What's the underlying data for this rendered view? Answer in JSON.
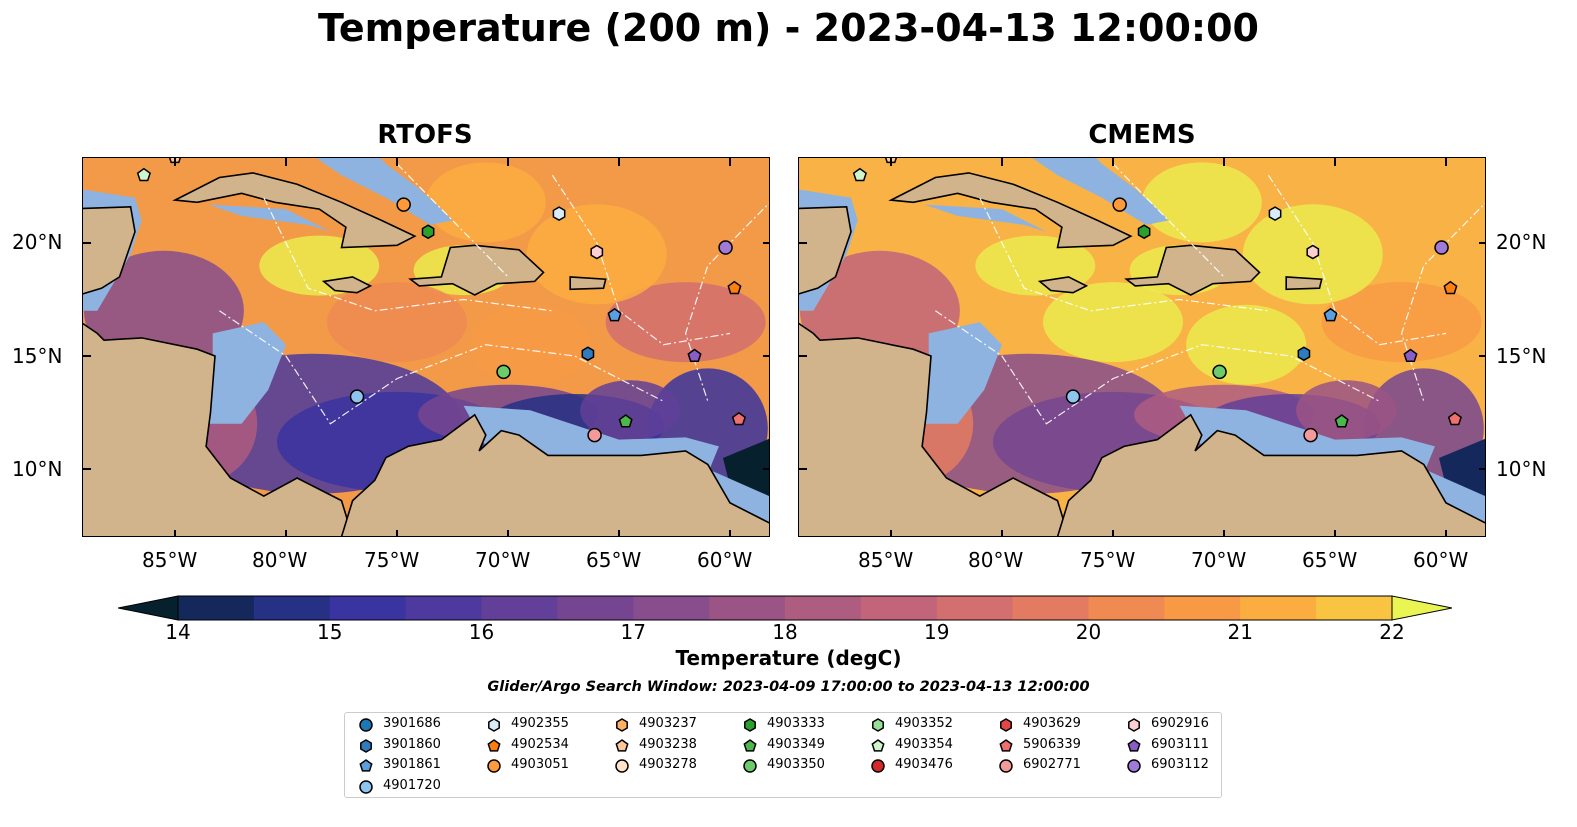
{
  "title": "Temperature (200 m) - 2023-04-13 12:00:00",
  "panels": [
    {
      "title": "RTOFS"
    },
    {
      "title": "CMEMS"
    }
  ],
  "colors": {
    "land": "#d2b48c",
    "shallow_water": "#8fb3e0",
    "deep_cold": "#06202e",
    "warm_extreme": "#eaf554"
  },
  "chart_data": {
    "type": "heatmap",
    "variable": "Temperature (200 m)",
    "date": "2023-04-13 12:00:00",
    "colorbar": {
      "label": "Temperature (degC)",
      "ticks": [
        14,
        15,
        16,
        17,
        18,
        19,
        20,
        21,
        22
      ],
      "min": 14,
      "max": 22,
      "step": 0.5,
      "extend": "both",
      "colors": [
        "#0c2a3e",
        "#15285c",
        "#263085",
        "#3a34a0",
        "#4e3a9e",
        "#623f99",
        "#754591",
        "#874d8c",
        "#9a5485",
        "#ae5c80",
        "#c2647a",
        "#d46f70",
        "#e37b62",
        "#ef8a52",
        "#f89a45",
        "#fbad3f",
        "#f9c441",
        "#ecea4e"
      ]
    },
    "x_axis": {
      "ticks": [
        "85°W",
        "80°W",
        "75°W",
        "70°W",
        "65°W",
        "60°W"
      ]
    },
    "y_axis": {
      "ticks": [
        "20°N",
        "15°N",
        "10°N"
      ]
    },
    "search_window": "Glider/Argo Search Window: 2023-04-09 17:00:00 to 2023-04-13 12:00:00",
    "floats": [
      {
        "id": "3901686",
        "color": "#1f77b4",
        "marker": "circle"
      },
      {
        "id": "3901860",
        "color": "#2f7bc0",
        "marker": "hexagon"
      },
      {
        "id": "3901861",
        "color": "#5aa0e0",
        "marker": "pentagon"
      },
      {
        "id": "4901720",
        "color": "#8ec4ee",
        "marker": "circle"
      },
      {
        "id": "4902355",
        "color": "#d8ecf8",
        "marker": "hexagon"
      },
      {
        "id": "4902534",
        "color": "#ff7f0e",
        "marker": "pentagon"
      },
      {
        "id": "4903051",
        "color": "#ff9a3a",
        "marker": "circle"
      },
      {
        "id": "4903237",
        "color": "#ffb065",
        "marker": "hexagon"
      },
      {
        "id": "4903238",
        "color": "#ffc898",
        "marker": "pentagon"
      },
      {
        "id": "4903278",
        "color": "#ffe2c8",
        "marker": "circle"
      },
      {
        "id": "4903333",
        "color": "#2ca02c",
        "marker": "hexagon"
      },
      {
        "id": "4903349",
        "color": "#4cb84c",
        "marker": "pentagon"
      },
      {
        "id": "4903350",
        "color": "#6ccc6c",
        "marker": "circle"
      },
      {
        "id": "4903352",
        "color": "#98e098",
        "marker": "hexagon"
      },
      {
        "id": "4903354",
        "color": "#cff5cc",
        "marker": "pentagon"
      },
      {
        "id": "4903476",
        "color": "#d62728",
        "marker": "circle"
      },
      {
        "id": "4903629",
        "color": "#e04848",
        "marker": "hexagon"
      },
      {
        "id": "5906339",
        "color": "#f07070",
        "marker": "pentagon"
      },
      {
        "id": "6902771",
        "color": "#f49a9a",
        "marker": "circle"
      },
      {
        "id": "6902916",
        "color": "#fcd0d0",
        "marker": "hexagon"
      },
      {
        "id": "6903111",
        "color": "#8a5cc8",
        "marker": "pentagon"
      },
      {
        "id": "6903112",
        "color": "#a07ad8",
        "marker": "circle"
      }
    ]
  }
}
